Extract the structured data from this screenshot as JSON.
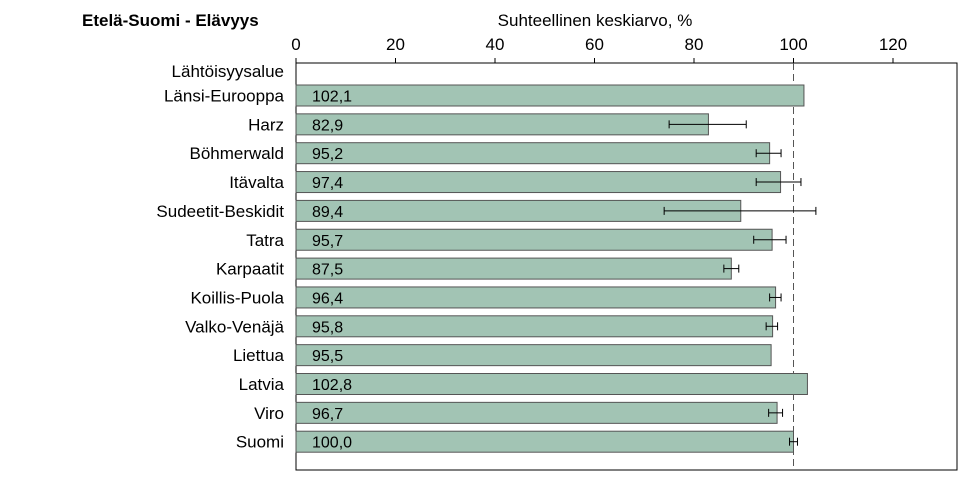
{
  "chart_data": {
    "type": "bar",
    "orientation": "horizontal",
    "title": "Etelä-Suomi - Elävyys",
    "xlabel": "Suhteellinen keskiarvo, %",
    "ylabel": "Lähtöisyysalue",
    "xlim": [
      0,
      130
    ],
    "xticks": [
      0,
      20,
      40,
      60,
      80,
      100,
      120
    ],
    "tick_labels": [
      "0",
      "20",
      "40",
      "60",
      "80",
      "100",
      "120"
    ],
    "reference_line": 100,
    "bar_color": "#a2c4b4",
    "categories": [
      "Länsi-Eurooppa",
      "Harz",
      "Böhmerwald",
      "Itävalta",
      "Sudeetit-Beskidit",
      "Tatra",
      "Karpaatit",
      "Koillis-Puola",
      "Valko-Venäjä",
      "Liettua",
      "Latvia",
      "Viro",
      "Suomi"
    ],
    "values": [
      102.1,
      82.9,
      95.2,
      97.4,
      89.4,
      95.7,
      87.5,
      96.4,
      95.8,
      95.5,
      102.8,
      96.7,
      100.0
    ],
    "value_labels": [
      "102,1",
      "82,9",
      "95,2",
      "97,4",
      "89,4",
      "95,7",
      "87,5",
      "96,4",
      "95,8",
      "95,5",
      "102,8",
      "96,7",
      "100,0"
    ],
    "error_low": [
      null,
      75.0,
      92.5,
      92.5,
      74.0,
      92.0,
      86.0,
      95.2,
      94.5,
      null,
      null,
      95.0,
      99.2
    ],
    "error_high": [
      null,
      90.5,
      97.5,
      101.5,
      104.5,
      98.5,
      89.0,
      97.5,
      96.8,
      null,
      null,
      97.8,
      100.8
    ]
  }
}
